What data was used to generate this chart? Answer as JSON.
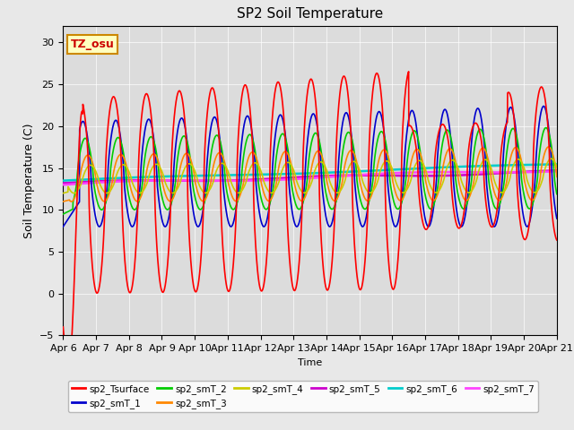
{
  "title": "SP2 Soil Temperature",
  "xlabel": "Time",
  "ylabel": "Soil Temperature (C)",
  "ylim": [
    -5,
    32
  ],
  "xlim_days": [
    0,
    15
  ],
  "fig_facecolor": "#e8e8e8",
  "plot_bg_color": "#dcdcdc",
  "tz_label": "TZ_osu",
  "tz_box_facecolor": "#ffffc0",
  "tz_box_edgecolor": "#cc8800",
  "tz_text_color": "#cc0000",
  "series_colors": {
    "sp2_Tsurface": "#ff0000",
    "sp2_smT_1": "#0000cc",
    "sp2_smT_2": "#00cc00",
    "sp2_smT_3": "#ff8800",
    "sp2_smT_4": "#cccc00",
    "sp2_smT_5": "#cc00cc",
    "sp2_smT_6": "#00cccc",
    "sp2_smT_7": "#ff44ff"
  },
  "tick_labels": [
    "Apr 6",
    "Apr 7",
    "Apr 8",
    "Apr 9",
    "Apr 10",
    "Apr 11",
    "Apr 12",
    "Apr 13",
    "Apr 14",
    "Apr 15",
    "Apr 16",
    "Apr 17",
    "Apr 18",
    "Apr 19",
    "Apr 20",
    "Apr 21"
  ],
  "tick_positions": [
    0,
    1,
    2,
    3,
    4,
    5,
    6,
    7,
    8,
    9,
    10,
    11,
    12,
    13,
    14,
    15
  ],
  "yticks": [
    -5,
    0,
    5,
    10,
    15,
    20,
    25,
    30
  ]
}
